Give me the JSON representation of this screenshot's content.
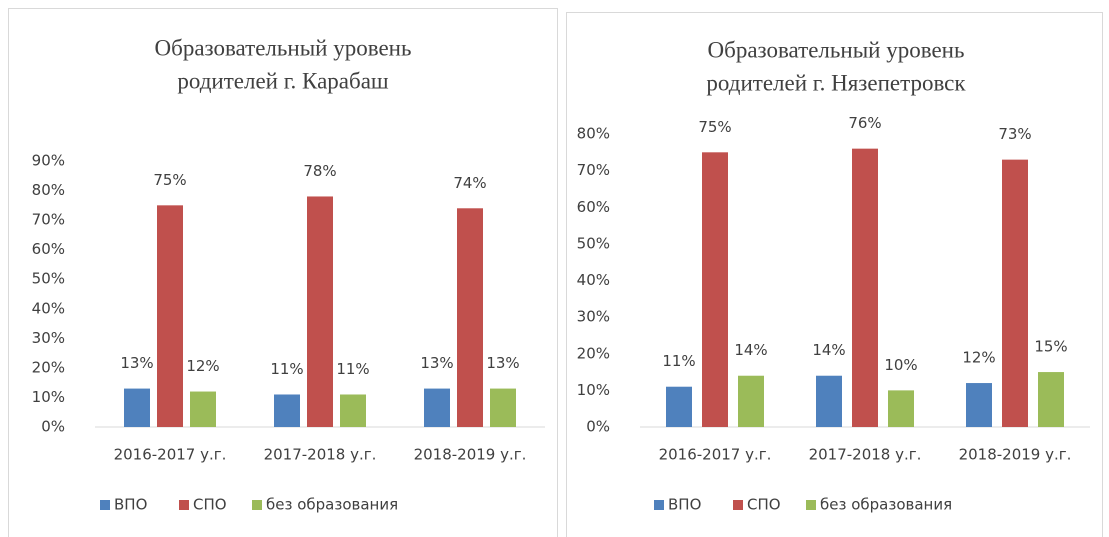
{
  "chart_data": [
    {
      "type": "bar",
      "title": [
        "Образовательный уровень",
        "родителей г. Карабаш"
      ],
      "categories": [
        "2016-2017 у.г.",
        "2017-2018 у.г.",
        "2018-2019 у.г."
      ],
      "series": [
        {
          "name": "ВПО",
          "color": "#4f81bd",
          "values": [
            13,
            11,
            13
          ],
          "value_labels": [
            "13%",
            "11%",
            "13%"
          ]
        },
        {
          "name": "СПО",
          "color": "#c0504d",
          "values": [
            75,
            78,
            74
          ],
          "value_labels": [
            "75%",
            "78%",
            "74%"
          ]
        },
        {
          "name": "без образования",
          "color": "#9bbb59",
          "values": [
            12,
            11,
            13
          ],
          "value_labels": [
            "12%",
            "11%",
            "13%"
          ]
        }
      ],
      "ylim": [
        0,
        90
      ],
      "yticks": [
        {
          "value": 0,
          "label": "0%"
        },
        {
          "value": 10,
          "label": "10%"
        },
        {
          "value": 20,
          "label": "20%"
        },
        {
          "value": 30,
          "label": "30%"
        },
        {
          "value": 40,
          "label": "40%"
        },
        {
          "value": 50,
          "label": "50%"
        },
        {
          "value": 60,
          "label": "60%"
        },
        {
          "value": 70,
          "label": "70%"
        },
        {
          "value": 80,
          "label": "80%"
        },
        {
          "value": 90,
          "label": "90%"
        }
      ],
      "grid": false,
      "legend": "bottom"
    },
    {
      "type": "bar",
      "title": [
        "Образовательный уровень",
        "родителей г. Нязепетровск"
      ],
      "categories": [
        "2016-2017 у.г.",
        "2017-2018 у.г.",
        "2018-2019 у.г."
      ],
      "series": [
        {
          "name": "ВПО",
          "color": "#4f81bd",
          "values": [
            11,
            14,
            12
          ],
          "value_labels": [
            "11%",
            "14%",
            "12%"
          ]
        },
        {
          "name": "СПО",
          "color": "#c0504d",
          "values": [
            75,
            76,
            73
          ],
          "value_labels": [
            "75%",
            "76%",
            "73%"
          ]
        },
        {
          "name": "без образования",
          "color": "#9bbb59",
          "values": [
            14,
            10,
            15
          ],
          "value_labels": [
            "14%",
            "10%",
            "15%"
          ]
        }
      ],
      "ylim": [
        0,
        80
      ],
      "yticks": [
        {
          "value": 0,
          "label": "0%"
        },
        {
          "value": 10,
          "label": "10%"
        },
        {
          "value": 20,
          "label": "20%"
        },
        {
          "value": 30,
          "label": "30%"
        },
        {
          "value": 40,
          "label": "40%"
        },
        {
          "value": 50,
          "label": "50%"
        },
        {
          "value": 60,
          "label": "60%"
        },
        {
          "value": 70,
          "label": "70%"
        },
        {
          "value": 80,
          "label": "80%"
        }
      ],
      "grid": false,
      "legend": "bottom"
    }
  ]
}
